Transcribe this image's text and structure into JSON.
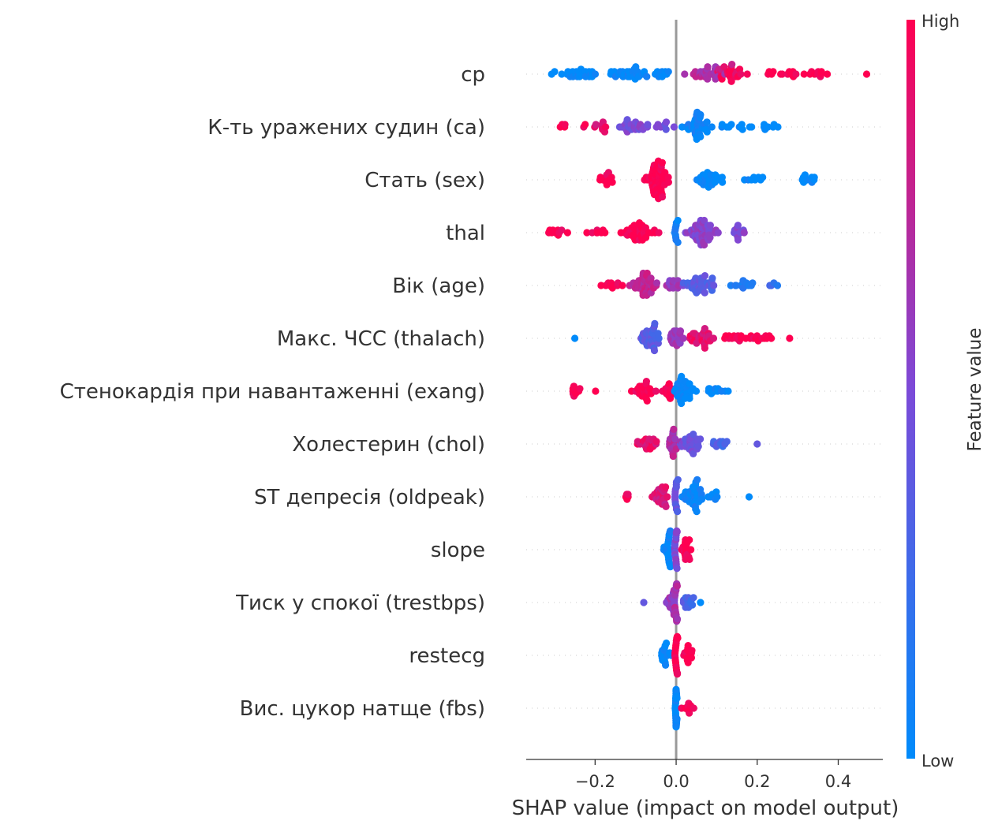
{
  "chart_data": {
    "type": "scatter",
    "subtype": "shap-beeswarm",
    "title": "",
    "xlabel": "SHAP value (impact on model output)",
    "ylabel": "",
    "xlim": [
      -0.37,
      0.51
    ],
    "xticks": [
      -0.2,
      0.0,
      0.2,
      0.4
    ],
    "xtick_labels": [
      "−0.2",
      "0.0",
      "0.2",
      "0.4"
    ],
    "zero_line": 0.0,
    "colorbar": {
      "title": "Feature value",
      "high_label": "High",
      "low_label": "Low",
      "low_color": "#008bfb",
      "mid_color": "#7c4ad8",
      "high_color": "#ff0051"
    },
    "features": [
      {
        "name": "cp",
        "summary": "low values negative (−0.32 to 0), high values positive (0.02 to 0.47)",
        "clusters": [
          {
            "center": -0.25,
            "spread": 0.07,
            "n": 24,
            "value": 0.0
          },
          {
            "center": -0.12,
            "spread": 0.06,
            "n": 30,
            "value": 0.02
          },
          {
            "center": -0.04,
            "spread": 0.03,
            "n": 10,
            "value": 0.05
          },
          {
            "center": 0.08,
            "spread": 0.05,
            "n": 30,
            "value": 0.7
          },
          {
            "center": 0.14,
            "spread": 0.05,
            "n": 22,
            "value": 0.95
          },
          {
            "center": 0.25,
            "spread": 0.05,
            "n": 12,
            "value": 1.0
          },
          {
            "center": 0.34,
            "spread": 0.04,
            "n": 10,
            "value": 1.0
          }
        ],
        "extra": [
          {
            "x": 0.47,
            "value": 1.0
          },
          {
            "x": -0.3,
            "value": 0.0
          }
        ]
      },
      {
        "name": "К-ть уражених судин (ca)",
        "summary": "high values negative (−0.29 to 0), low values positive (0 to 0.27)",
        "clusters": [
          {
            "center": -0.26,
            "spread": 0.03,
            "n": 6,
            "value": 1.0
          },
          {
            "center": -0.18,
            "spread": 0.03,
            "n": 8,
            "value": 0.9
          },
          {
            "center": -0.1,
            "spread": 0.035,
            "n": 24,
            "value": 0.5
          },
          {
            "center": -0.03,
            "spread": 0.02,
            "n": 8,
            "value": 0.45
          },
          {
            "center": 0.05,
            "spread": 0.04,
            "n": 36,
            "value": 0.05
          },
          {
            "center": 0.14,
            "spread": 0.04,
            "n": 10,
            "value": 0.0
          },
          {
            "center": 0.23,
            "spread": 0.03,
            "n": 8,
            "value": 0.0
          }
        ],
        "extra": []
      },
      {
        "name": "Стать (sex)",
        "summary": "high values negative (−0.19 to 0), low values positive (0.05 to 0.36)",
        "clusters": [
          {
            "center": -0.17,
            "spread": 0.02,
            "n": 12,
            "value": 1.0
          },
          {
            "center": -0.045,
            "spread": 0.025,
            "n": 60,
            "value": 1.0
          },
          {
            "center": 0.08,
            "spread": 0.04,
            "n": 30,
            "value": 0.0
          },
          {
            "center": 0.19,
            "spread": 0.03,
            "n": 8,
            "value": 0.0
          },
          {
            "center": 0.33,
            "spread": 0.02,
            "n": 10,
            "value": 0.0
          }
        ],
        "extra": []
      },
      {
        "name": "thal",
        "summary": "high values negative (−0.33 to 0), mid values positive (0 to 0.18)",
        "clusters": [
          {
            "center": -0.3,
            "spread": 0.03,
            "n": 10,
            "value": 1.0
          },
          {
            "center": -0.2,
            "spread": 0.03,
            "n": 8,
            "value": 1.0
          },
          {
            "center": -0.09,
            "spread": 0.04,
            "n": 40,
            "value": 1.0
          },
          {
            "center": 0.0,
            "spread": 0.004,
            "n": 10,
            "value": 0.05
          },
          {
            "center": 0.06,
            "spread": 0.04,
            "n": 50,
            "value": 0.55
          },
          {
            "center": 0.15,
            "spread": 0.025,
            "n": 12,
            "value": 0.5
          }
        ],
        "extra": []
      },
      {
        "name": "Вік (age)",
        "summary": "mixed: high values mostly negative, low values mostly positive (−0.21 to 0.26)",
        "clusters": [
          {
            "center": -0.17,
            "spread": 0.03,
            "n": 10,
            "value": 1.0
          },
          {
            "center": -0.08,
            "spread": 0.035,
            "n": 40,
            "value": 0.75
          },
          {
            "center": -0.01,
            "spread": 0.02,
            "n": 14,
            "value": 0.6
          },
          {
            "center": 0.06,
            "spread": 0.04,
            "n": 36,
            "value": 0.35
          },
          {
            "center": 0.16,
            "spread": 0.03,
            "n": 12,
            "value": 0.15
          },
          {
            "center": 0.24,
            "spread": 0.02,
            "n": 4,
            "value": 0.2
          }
        ],
        "extra": []
      },
      {
        "name": "Макс. ЧСС (thalach)",
        "summary": "low values negative (−0.25 to 0), high values positive (0 to 0.28)",
        "clusters": [
          {
            "center": -0.06,
            "spread": 0.03,
            "n": 36,
            "value": 0.35
          },
          {
            "center": 0.0,
            "spread": 0.015,
            "n": 20,
            "value": 0.6
          },
          {
            "center": 0.06,
            "spread": 0.035,
            "n": 28,
            "value": 0.9
          },
          {
            "center": 0.15,
            "spread": 0.03,
            "n": 14,
            "value": 1.0
          },
          {
            "center": 0.21,
            "spread": 0.025,
            "n": 10,
            "value": 1.0
          }
        ],
        "extra": [
          {
            "x": -0.25,
            "value": 0.0
          },
          {
            "x": 0.28,
            "value": 1.0
          }
        ]
      },
      {
        "name": "Стенокардія при навантаженні (exang)",
        "summary": "high values negative (−0.27 to 0), low values positive (0 to 0.15)",
        "clusters": [
          {
            "center": -0.25,
            "spread": 0.015,
            "n": 10,
            "value": 1.0
          },
          {
            "center": -0.2,
            "spread": 0.004,
            "n": 1,
            "value": 1.0
          },
          {
            "center": -0.08,
            "spread": 0.03,
            "n": 24,
            "value": 1.0
          },
          {
            "center": -0.02,
            "spread": 0.015,
            "n": 14,
            "value": 1.0
          },
          {
            "center": 0.02,
            "spread": 0.02,
            "n": 36,
            "value": 0.0
          },
          {
            "center": 0.1,
            "spread": 0.025,
            "n": 12,
            "value": 0.0
          }
        ],
        "extra": [
          {
            "x": -0.11,
            "value": 1.0
          }
        ]
      },
      {
        "name": "Холестерин (chol)",
        "summary": "mixed, spread from −0.10 to 0.20",
        "clusters": [
          {
            "center": -0.07,
            "spread": 0.02,
            "n": 20,
            "value": 0.9
          },
          {
            "center": -0.01,
            "spread": 0.015,
            "n": 22,
            "value": 0.7
          },
          {
            "center": 0.04,
            "spread": 0.025,
            "n": 30,
            "value": 0.45
          },
          {
            "center": 0.11,
            "spread": 0.02,
            "n": 10,
            "value": 0.3
          }
        ],
        "extra": [
          {
            "x": 0.2,
            "value": 0.4
          }
        ]
      },
      {
        "name": "ST депресія (oldpeak)",
        "summary": "high values negative (−0.13 to 0), low values positive (0 to 0.18)",
        "clusters": [
          {
            "center": -0.12,
            "spread": 0.01,
            "n": 5,
            "value": 1.0
          },
          {
            "center": -0.04,
            "spread": 0.02,
            "n": 26,
            "value": 0.85
          },
          {
            "center": 0.0,
            "spread": 0.004,
            "n": 14,
            "value": 0.4
          },
          {
            "center": 0.04,
            "spread": 0.025,
            "n": 40,
            "value": 0.05
          },
          {
            "center": 0.09,
            "spread": 0.015,
            "n": 8,
            "value": 0.0
          }
        ],
        "extra": [
          {
            "x": 0.18,
            "value": 0.0
          }
        ]
      },
      {
        "name": "slope",
        "summary": "narrow: −0.05 to 0.05",
        "clusters": [
          {
            "center": -0.02,
            "spread": 0.012,
            "n": 20,
            "value": 0.05
          },
          {
            "center": 0.0,
            "spread": 0.004,
            "n": 18,
            "value": 0.5
          },
          {
            "center": 0.025,
            "spread": 0.012,
            "n": 20,
            "value": 1.0
          }
        ],
        "extra": []
      },
      {
        "name": "Тиск у спокої (trestbps)",
        "summary": "narrow: −0.08 to 0.06",
        "clusters": [
          {
            "center": -0.01,
            "spread": 0.015,
            "n": 24,
            "value": 0.6
          },
          {
            "center": 0.0,
            "spread": 0.004,
            "n": 16,
            "value": 0.7
          },
          {
            "center": 0.03,
            "spread": 0.015,
            "n": 14,
            "value": 0.3
          }
        ],
        "extra": [
          {
            "x": -0.08,
            "value": 0.4
          },
          {
            "x": 0.06,
            "value": 0.0
          }
        ]
      },
      {
        "name": "restecg",
        "summary": "narrow: −0.05 to 0.05",
        "clusters": [
          {
            "center": -0.025,
            "spread": 0.012,
            "n": 18,
            "value": 0.0
          },
          {
            "center": 0.0,
            "spread": 0.004,
            "n": 20,
            "value": 1.0
          },
          {
            "center": 0.03,
            "spread": 0.012,
            "n": 14,
            "value": 1.0
          }
        ],
        "extra": []
      },
      {
        "name": "Вис. цукор натще (fbs)",
        "summary": "narrow: 0 to 0.05",
        "clusters": [
          {
            "center": 0.0,
            "spread": 0.002,
            "n": 40,
            "value": 0.0
          },
          {
            "center": 0.03,
            "spread": 0.012,
            "n": 10,
            "value": 1.0
          }
        ],
        "extra": []
      }
    ]
  }
}
